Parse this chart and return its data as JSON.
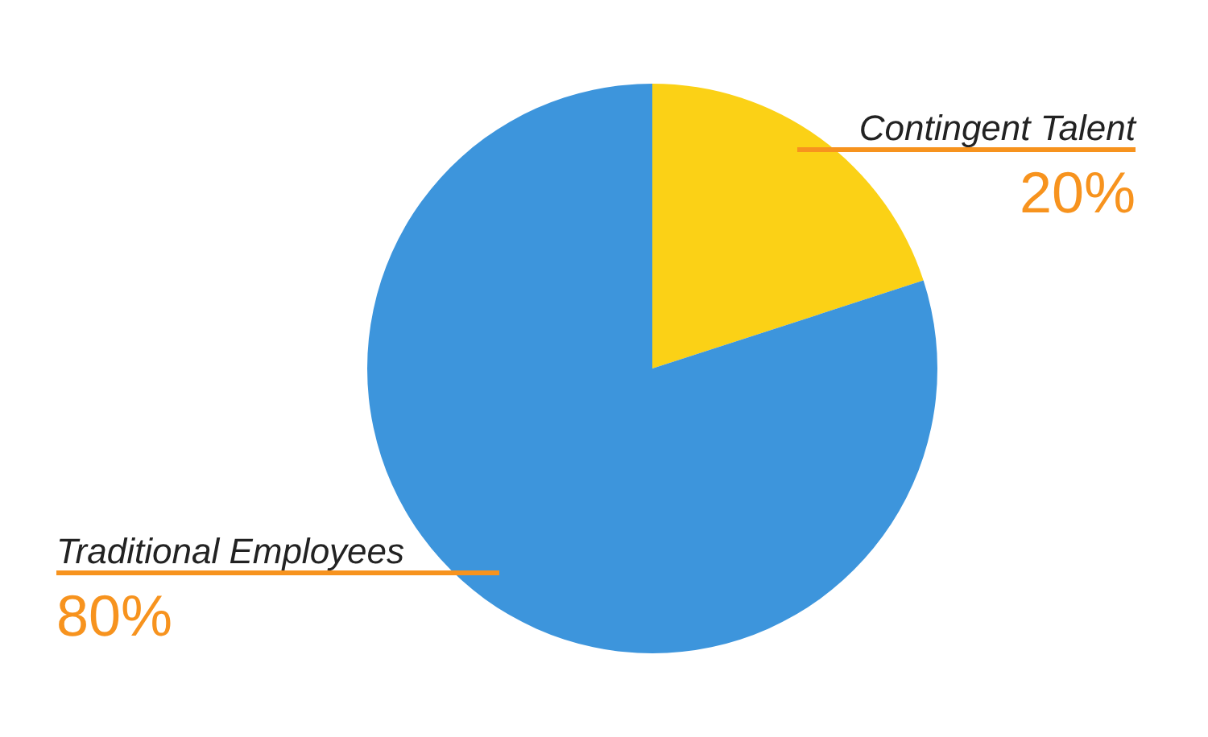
{
  "chart_data": {
    "type": "pie",
    "categories": [
      "Contingent Talent",
      "Traditional Employees"
    ],
    "values": [
      20,
      80
    ],
    "colors": [
      "#fbd116",
      "#3d95dc"
    ],
    "value_labels": [
      "20%",
      "80%"
    ]
  }
}
